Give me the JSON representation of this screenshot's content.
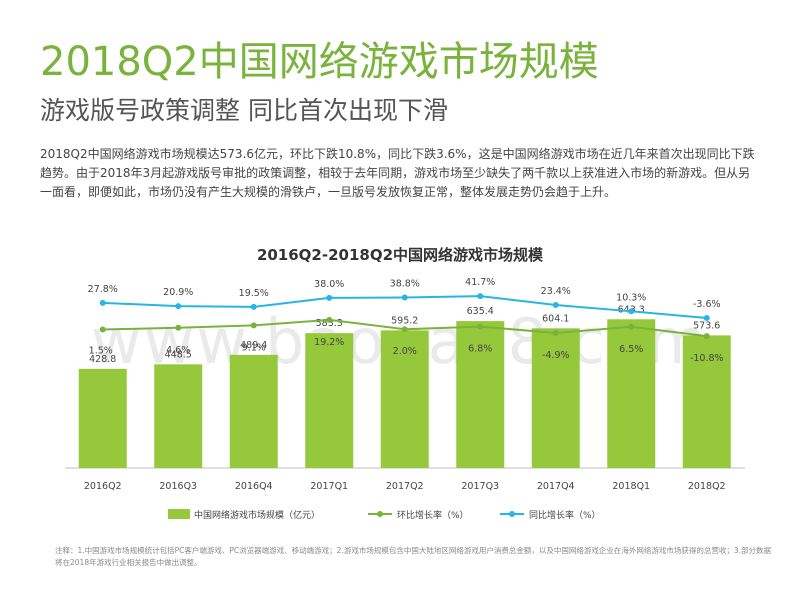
{
  "header": {
    "title": "2018Q2中国网络游戏市场规模",
    "subtitle": "游戏版号政策调整 同比首次出现下滑",
    "description": "2018Q2中国网络游戏市场规模达573.6亿元，环比下跌10.8%，同比下跌3.6%，这是中国网络游戏市场在近几年来首次出现同比下跌趋势。由于2018年3月起游戏版号审批的政策调整，相较于去年同期，游戏市场至少缺失了两千款以上获准进入市场的新游戏。但从另一面看，即便如此，市场仍没有产生大规模的滑铁卢，一旦版号发放恢复正常，整体发展走势仍会趋于上升。"
  },
  "watermark": "www.baogao8.com",
  "footnote": "注释：1.中国游戏市场规模统计包括PC客户端游戏、PC浏览器端游戏、移动端游戏；2.游戏市场规模包含中国大陆地区网络游戏用户消费总金额，以及中国网络游戏企业在海外网络游戏市场获得的总营收；3.部分数据将在2018年游戏行业相关报告中做出调整。",
  "colors": {
    "bar": "#96c83c",
    "qoq": "#7ab33c",
    "yoy": "#29b5e4",
    "accent": "#7ab33c"
  },
  "chart_data": {
    "type": "bar",
    "title": "2016Q2-2018Q2中国网络游戏市场规模",
    "categories": [
      "2016Q2",
      "2016Q3",
      "2016Q4",
      "2017Q1",
      "2017Q2",
      "2017Q3",
      "2017Q4",
      "2018Q1",
      "2018Q2"
    ],
    "series": [
      {
        "name": "中国网络游戏市场规模（亿元）",
        "kind": "bar",
        "values": [
          428.8,
          448.5,
          489.4,
          583.3,
          595.2,
          635.4,
          604.1,
          643.3,
          573.6
        ],
        "labels": [
          "428.8",
          "448.5",
          "489.4",
          "583.3",
          "595.2",
          "635.4",
          "604.1",
          "643.3",
          "573.6"
        ]
      },
      {
        "name": "环比增长率（%）",
        "kind": "line",
        "values": [
          1.5,
          4.6,
          9.1,
          19.2,
          2.0,
          6.8,
          -4.9,
          6.5,
          -10.8
        ],
        "labels": [
          "1.5%",
          "4.6%",
          "9.1%",
          "19.2%",
          "2.0%",
          "6.8%",
          "-4.9%",
          "6.5%",
          "-10.8%"
        ]
      },
      {
        "name": "同比增长率（%）",
        "kind": "line",
        "values": [
          27.8,
          20.9,
          19.5,
          38.0,
          38.8,
          41.7,
          23.4,
          10.3,
          -3.6
        ],
        "labels": [
          "27.8%",
          "20.9%",
          "19.5%",
          "38.0%",
          "38.8%",
          "41.7%",
          "23.4%",
          "10.3%",
          "-3.6%"
        ]
      }
    ],
    "legend_position": "bottom"
  }
}
